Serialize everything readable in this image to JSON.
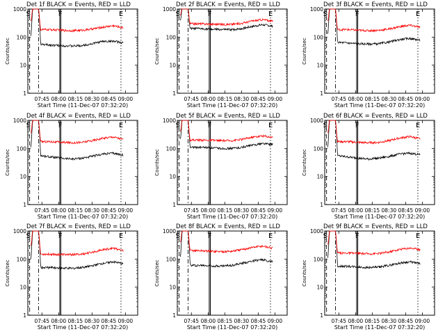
{
  "chart_data": [
    {
      "type": "line",
      "title": "Det 1f BLACK = Events, RED = LLD",
      "xlabel": "Start Time (11-Dec-07 07:32:20)",
      "ylabel": "Counts/sec",
      "yscale": "log",
      "ylim": [
        1,
        1000
      ],
      "x_ticks": [
        "07:45",
        "08:00",
        "08:15",
        "08:30",
        "08:45",
        "09:00"
      ],
      "y_ticks": [
        "1",
        "10",
        "100",
        "1000"
      ],
      "markers": [
        "S",
        "F",
        "E"
      ],
      "peak_time": "07:39",
      "series": [
        {
          "name": "Events",
          "color": "#000000",
          "values": [
            55,
            52,
            50,
            48,
            50,
            58,
            70,
            72,
            62
          ]
        },
        {
          "name": "LLD",
          "color": "#ff0000",
          "values": [
            185,
            185,
            175,
            170,
            175,
            195,
            225,
            255,
            215
          ]
        }
      ]
    },
    {
      "type": "line",
      "title": "Det 2f BLACK = Events, RED = LLD",
      "xlabel": "Start Time (11-Dec-07 07:32:20)",
      "ylabel": "Counts/sec",
      "yscale": "log",
      "ylim": [
        1,
        1000
      ],
      "x_ticks": [
        "07:45",
        "08:00",
        "08:15",
        "08:30",
        "08:45",
        "09:00"
      ],
      "y_ticks": [
        "1",
        "10",
        "100",
        "1000"
      ],
      "markers": [
        "S",
        "F",
        "E"
      ],
      "peak_time": "07:39",
      "series": [
        {
          "name": "Events",
          "color": "#000000",
          "values": [
            200,
            200,
            190,
            185,
            185,
            200,
            240,
            275,
            250
          ]
        },
        {
          "name": "LLD",
          "color": "#ff0000",
          "values": [
            300,
            300,
            290,
            285,
            285,
            310,
            375,
            420,
            370
          ]
        }
      ]
    },
    {
      "type": "line",
      "title": "Det 3f BLACK = Events, RED = LLD",
      "xlabel": "Start Time (11-Dec-07 07:32:20)",
      "ylabel": "Counts/sec",
      "yscale": "log",
      "ylim": [
        1,
        1000
      ],
      "x_ticks": [
        "07:45",
        "08:00",
        "08:15",
        "08:30",
        "08:45",
        "09:00"
      ],
      "y_ticks": [
        "1",
        "10",
        "100",
        "1000"
      ],
      "markers": [
        "S",
        "F",
        "E"
      ],
      "peak_time": "07:39",
      "series": [
        {
          "name": "Events",
          "color": "#000000",
          "values": [
            65,
            62,
            58,
            57,
            58,
            67,
            82,
            90,
            78
          ]
        },
        {
          "name": "LLD",
          "color": "#ff0000",
          "values": [
            185,
            185,
            175,
            170,
            175,
            195,
            235,
            265,
            225
          ]
        }
      ]
    },
    {
      "type": "line",
      "title": "Det 4f BLACK = Events, RED = LLD",
      "xlabel": "Start Time (11-Dec-07 07:32:20)",
      "ylabel": "Counts/sec",
      "yscale": "log",
      "ylim": [
        1,
        1000
      ],
      "x_ticks": [
        "07:45",
        "08:00",
        "08:15",
        "08:30",
        "08:45",
        "09:00"
      ],
      "y_ticks": [
        "1",
        "10",
        "100",
        "1000"
      ],
      "markers": [
        "S",
        "F",
        "E"
      ],
      "peak_time": "07:39",
      "series": [
        {
          "name": "Events",
          "color": "#000000",
          "values": [
            55,
            50,
            45,
            42,
            45,
            52,
            63,
            68,
            58
          ]
        },
        {
          "name": "LLD",
          "color": "#ff0000",
          "values": [
            175,
            175,
            165,
            160,
            165,
            190,
            230,
            260,
            210
          ]
        }
      ]
    },
    {
      "type": "line",
      "title": "Det 5f BLACK = Events, RED = LLD",
      "xlabel": "Start Time (11-Dec-07 07:32:20)",
      "ylabel": "Counts/sec",
      "yscale": "log",
      "ylim": [
        1,
        1000
      ],
      "x_ticks": [
        "07:45",
        "08:00",
        "08:15",
        "08:30",
        "08:45",
        "09:00"
      ],
      "y_ticks": [
        "1",
        "10",
        "100",
        "1000"
      ],
      "markers": [
        "S",
        "F",
        "E"
      ],
      "peak_time": "07:39",
      "series": [
        {
          "name": "Events",
          "color": "#000000",
          "values": [
            110,
            110,
            105,
            100,
            100,
            110,
            130,
            150,
            140
          ]
        },
        {
          "name": "LLD",
          "color": "#ff0000",
          "values": [
            200,
            200,
            195,
            190,
            190,
            210,
            250,
            280,
            250
          ]
        }
      ]
    },
    {
      "type": "line",
      "title": "Det 6f BLACK = Events, RED = LLD",
      "xlabel": "Start Time (11-Dec-07 07:32:20)",
      "ylabel": "Counts/sec",
      "yscale": "log",
      "ylim": [
        1,
        1000
      ],
      "x_ticks": [
        "07:45",
        "08:00",
        "08:15",
        "08:30",
        "08:45",
        "09:00"
      ],
      "y_ticks": [
        "1",
        "10",
        "100",
        "1000"
      ],
      "markers": [
        "S",
        "F",
        "E"
      ],
      "peak_time": "07:39",
      "series": [
        {
          "name": "Events",
          "color": "#000000",
          "values": [
            55,
            50,
            45,
            42,
            45,
            52,
            63,
            68,
            60
          ]
        },
        {
          "name": "LLD",
          "color": "#ff0000",
          "values": [
            175,
            175,
            165,
            160,
            165,
            190,
            235,
            265,
            220
          ]
        }
      ]
    },
    {
      "type": "line",
      "title": "Det 7f BLACK = Events, RED = LLD",
      "xlabel": "Start Time (11-Dec-07 07:32:20)",
      "ylabel": "Counts/sec",
      "yscale": "log",
      "ylim": [
        1,
        1000
      ],
      "x_ticks": [
        "07:45",
        "08:00",
        "08:15",
        "08:30",
        "08:45",
        "09:00"
      ],
      "y_ticks": [
        "1",
        "10",
        "100",
        "1000"
      ],
      "markers": [
        "S",
        "F",
        "E"
      ],
      "peak_time": "07:39",
      "series": [
        {
          "name": "Events",
          "color": "#000000",
          "values": [
            50,
            50,
            48,
            47,
            50,
            58,
            70,
            80,
            68
          ]
        },
        {
          "name": "LLD",
          "color": "#ff0000",
          "values": [
            150,
            150,
            145,
            145,
            150,
            175,
            215,
            245,
            200
          ]
        }
      ]
    },
    {
      "type": "line",
      "title": "Det 8f BLACK = Events, RED = LLD",
      "xlabel": "Start Time (11-Dec-07 07:32:20)",
      "ylabel": "Counts/sec",
      "yscale": "log",
      "ylim": [
        1,
        1000
      ],
      "x_ticks": [
        "07:45",
        "08:00",
        "08:15",
        "08:30",
        "08:45",
        "09:00"
      ],
      "y_ticks": [
        "1",
        "10",
        "100",
        "1000"
      ],
      "markers": [
        "S",
        "F",
        "E"
      ],
      "peak_time": "07:39",
      "series": [
        {
          "name": "Events",
          "color": "#000000",
          "values": [
            60,
            60,
            58,
            57,
            60,
            70,
            85,
            95,
            80
          ]
        },
        {
          "name": "LLD",
          "color": "#ff0000",
          "values": [
            200,
            200,
            190,
            185,
            190,
            215,
            260,
            290,
            245
          ]
        }
      ]
    },
    {
      "type": "line",
      "title": "Det 9f BLACK = Events, RED = LLD",
      "xlabel": "Start Time (11-Dec-07 07:32:20)",
      "ylabel": "Counts/sec",
      "yscale": "log",
      "ylim": [
        1,
        1000
      ],
      "x_ticks": [
        "07:45",
        "08:00",
        "08:15",
        "08:30",
        "08:45",
        "09:00"
      ],
      "y_ticks": [
        "1",
        "10",
        "100",
        "1000"
      ],
      "markers": [
        "S",
        "F",
        "E"
      ],
      "peak_time": "07:39",
      "series": [
        {
          "name": "Events",
          "color": "#000000",
          "values": [
            55,
            55,
            52,
            50,
            52,
            60,
            72,
            80,
            68
          ]
        },
        {
          "name": "LLD",
          "color": "#ff0000",
          "values": [
            165,
            165,
            160,
            155,
            160,
            180,
            220,
            250,
            215
          ]
        }
      ]
    }
  ]
}
